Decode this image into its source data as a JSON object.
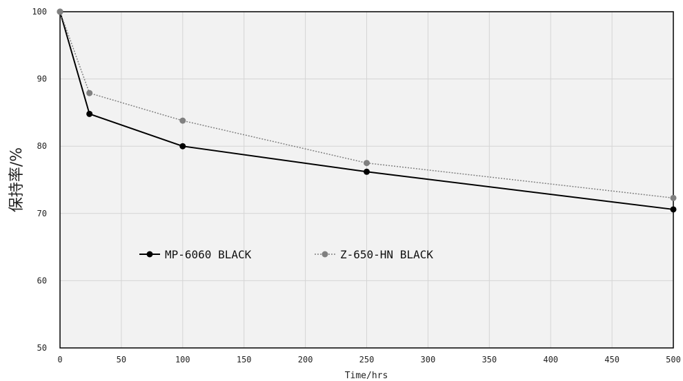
{
  "chart_data": {
    "type": "line",
    "title": "",
    "xlabel": "Time/hrs",
    "ylabel": "保持率/%",
    "xlim": [
      0,
      500
    ],
    "ylim": [
      50,
      100
    ],
    "xticks": [
      0,
      50,
      100,
      150,
      200,
      250,
      300,
      350,
      400,
      450,
      500
    ],
    "yticks": [
      50,
      60,
      70,
      80,
      90,
      100
    ],
    "grid": true,
    "legend_position": "middle-left",
    "series": [
      {
        "name": "MP-6060 BLACK",
        "color": "#000000",
        "style": "solid",
        "x": [
          0,
          24,
          100,
          250,
          500
        ],
        "y": [
          100,
          84.8,
          80.0,
          76.2,
          70.6
        ]
      },
      {
        "name": "Z-650-HN BLACK",
        "color": "#808080",
        "style": "dotted",
        "x": [
          0,
          24,
          100,
          250,
          500
        ],
        "y": [
          100,
          87.9,
          83.8,
          77.5,
          72.3
        ]
      }
    ]
  }
}
